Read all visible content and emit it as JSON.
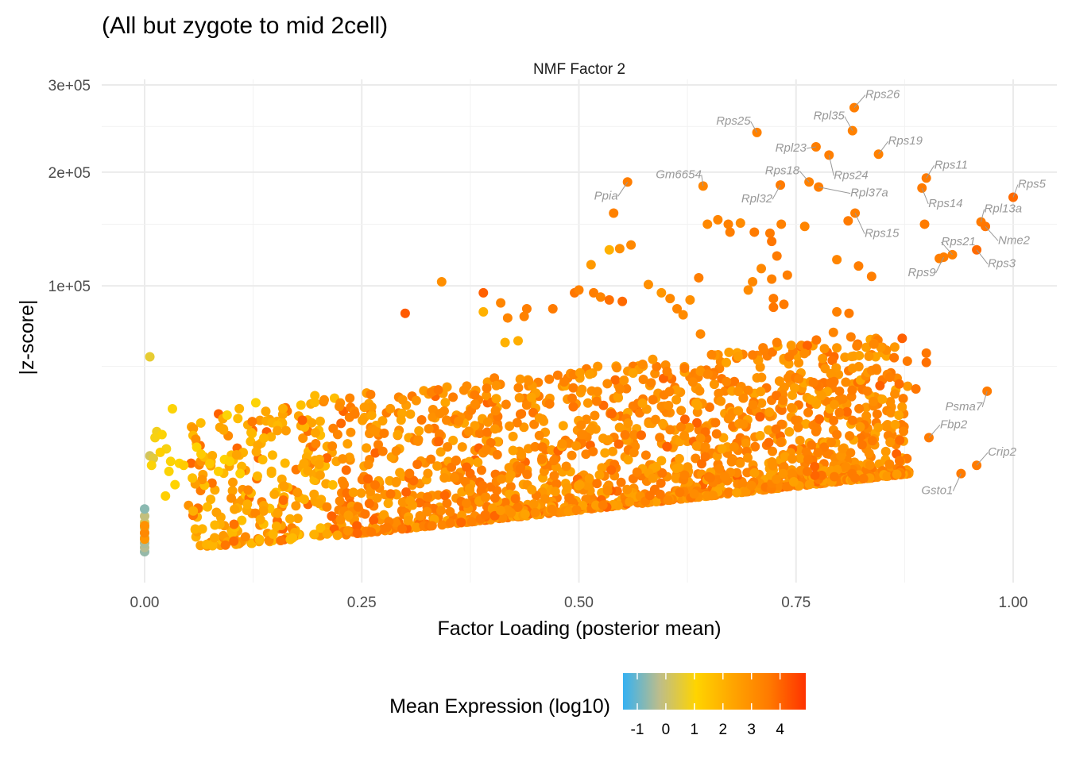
{
  "chart_data": {
    "type": "scatter",
    "title": "(All but zygote to mid 2cell)",
    "facet_label": "NMF Factor 2",
    "xlabel": "Factor Loading (posterior mean)",
    "ylabel": "|z-score|",
    "xlim": [
      -0.035,
      1.055
    ],
    "ylim": [
      0,
      303000
    ],
    "y_scale": "sqrt",
    "x_ticks": [
      0.0,
      0.25,
      0.5,
      0.75,
      1.0
    ],
    "x_tick_labels": [
      "0.00",
      "0.25",
      "0.50",
      "0.75",
      "1.00"
    ],
    "y_ticks": [
      100000,
      200000,
      300000
    ],
    "y_tick_labels": [
      "1e+05",
      "2e+05",
      "3e+05"
    ],
    "y_minor_ticks": [
      50000,
      150000,
      250000
    ],
    "grid": true,
    "legend": {
      "title": "Mean Expression (log10)",
      "position": "bottom",
      "range": [
        -1.5,
        4.9
      ],
      "ticks": [
        -1,
        0,
        1,
        2,
        3,
        4
      ],
      "tick_labels": [
        "-1",
        "0",
        "1",
        "2",
        "3",
        "4"
      ],
      "colors": [
        "#35B1F2",
        "#BDBD8A",
        "#FFD400",
        "#FFA500",
        "#FF7A00",
        "#FF3300"
      ]
    },
    "labeled_points": [
      {
        "label": "Rps26",
        "x": 0.817,
        "y": 272000,
        "c": 3.5
      },
      {
        "label": "Rpl35",
        "x": 0.815,
        "y": 245000,
        "c": 3.4
      },
      {
        "label": "Rps25",
        "x": 0.705,
        "y": 243000,
        "c": 3.4
      },
      {
        "label": "Rpl23",
        "x": 0.773,
        "y": 227000,
        "c": 3.5
      },
      {
        "label": "Rps19",
        "x": 0.845,
        "y": 219000,
        "c": 3.4
      },
      {
        "label": "Rps24",
        "x": 0.788,
        "y": 218000,
        "c": 3.5
      },
      {
        "label": "Rps11",
        "x": 0.9,
        "y": 194000,
        "c": 3.6
      },
      {
        "label": "Ppia",
        "x": 0.556,
        "y": 190000,
        "c": 3.5
      },
      {
        "label": "Gm6654",
        "x": 0.643,
        "y": 186000,
        "c": 3.3
      },
      {
        "label": "Rps18",
        "x": 0.765,
        "y": 190000,
        "c": 3.4
      },
      {
        "label": "Rpl32",
        "x": 0.732,
        "y": 187000,
        "c": 3.6
      },
      {
        "label": "Rpl37a",
        "x": 0.776,
        "y": 185000,
        "c": 3.5
      },
      {
        "label": "Rps14",
        "x": 0.895,
        "y": 184000,
        "c": 3.6
      },
      {
        "label": "Rps5",
        "x": 1.0,
        "y": 175000,
        "c": 3.9
      },
      {
        "label": "Rps15",
        "x": 0.818,
        "y": 160000,
        "c": 3.5
      },
      {
        "label": "Rpl13a",
        "x": 0.963,
        "y": 152000,
        "c": 3.6
      },
      {
        "label": "Nme2",
        "x": 0.968,
        "y": 148000,
        "c": 3.7
      },
      {
        "label": "Rps21",
        "x": 0.93,
        "y": 124000,
        "c": 3.4
      },
      {
        "label": "Rps9",
        "x": 0.92,
        "y": 122000,
        "c": 3.5
      },
      {
        "label": "Rps3",
        "x": 0.958,
        "y": 128000,
        "c": 3.9
      },
      {
        "label": "Psma7",
        "x": 0.97,
        "y": 38000,
        "c": 3.6
      },
      {
        "label": "Fbp2",
        "x": 0.903,
        "y": 20000,
        "c": 3.6
      },
      {
        "label": "Crip2",
        "x": 0.958,
        "y": 12000,
        "c": 3.6
      },
      {
        "label": "Gsto1",
        "x": 0.94,
        "y": 10000,
        "c": 3.6
      }
    ],
    "points": [
      {
        "x": 0.0,
        "y": 100,
        "c": -0.6
      },
      {
        "x": 0.0,
        "y": 220,
        "c": -0.3
      },
      {
        "x": 0.0,
        "y": 400,
        "c": -0.4
      },
      {
        "x": 0.0,
        "y": 700,
        "c": 0.0
      },
      {
        "x": 0.0,
        "y": 1000,
        "c": 0.4
      },
      {
        "x": 0.0,
        "y": 1400,
        "c": 0.2
      },
      {
        "x": 0.0,
        "y": 1900,
        "c": 0.3
      },
      {
        "x": 0.0,
        "y": 2600,
        "c": -0.1
      },
      {
        "x": 0.0,
        "y": 3500,
        "c": -0.7
      },
      {
        "x": 0.0,
        "y": 600,
        "c": 2.8
      },
      {
        "x": 0.0,
        "y": 1000,
        "c": 3.2
      },
      {
        "x": 0.0,
        "y": 1600,
        "c": 2.9
      },
      {
        "x": 0.006,
        "y": 14500,
        "c": 0.2
      },
      {
        "x": 0.01,
        "y": 13800,
        "c": 0.5
      },
      {
        "x": 0.014,
        "y": 22000,
        "c": 0.8
      },
      {
        "x": 0.012,
        "y": 20000,
        "c": 0.9
      },
      {
        "x": 0.02,
        "y": 21000,
        "c": 1.0
      },
      {
        "x": 0.025,
        "y": 16500,
        "c": 0.9
      },
      {
        "x": 0.03,
        "y": 13000,
        "c": 1.0
      },
      {
        "x": 0.04,
        "y": 12500,
        "c": 1.1
      },
      {
        "x": 0.018,
        "y": 15500,
        "c": 1.2
      },
      {
        "x": 0.028,
        "y": 10500,
        "c": 1.0
      },
      {
        "x": 0.035,
        "y": 7600,
        "c": 1.1
      },
      {
        "x": 0.024,
        "y": 5500,
        "c": 1.2
      },
      {
        "x": 0.008,
        "y": 12000,
        "c": 1.0
      },
      {
        "x": 0.006,
        "y": 55000,
        "c": 0.6
      },
      {
        "x": 0.032,
        "y": 30500,
        "c": 1.0
      },
      {
        "x": 0.095,
        "y": 28000,
        "c": 1.0
      },
      {
        "x": 0.128,
        "y": 33000,
        "c": 1.0
      },
      {
        "x": 0.18,
        "y": 32000,
        "c": 1.6
      },
      {
        "x": 0.196,
        "y": 36000,
        "c": 1.8
      },
      {
        "x": 0.092,
        "y": 13500,
        "c": 1.1
      },
      {
        "x": 0.098,
        "y": 13000,
        "c": 1.2
      },
      {
        "x": 0.06,
        "y": 17000,
        "c": 1.1
      },
      {
        "x": 0.045,
        "y": 12000,
        "c": 1.3
      },
      {
        "x": 0.075,
        "y": 12400,
        "c": 1.4
      },
      {
        "x": 0.055,
        "y": 9000,
        "c": 1.6
      },
      {
        "x": 0.065,
        "y": 15000,
        "c": 1.3
      },
      {
        "x": 0.085,
        "y": 10500,
        "c": 1.2
      },
      {
        "x": 0.11,
        "y": 10000,
        "c": 1.2
      },
      {
        "x": 0.54,
        "y": 160000,
        "c": 3.4
      },
      {
        "x": 0.535,
        "y": 128000,
        "c": 2.0
      },
      {
        "x": 0.547,
        "y": 129000,
        "c": 3.0
      },
      {
        "x": 0.56,
        "y": 132000,
        "c": 3.2
      },
      {
        "x": 0.514,
        "y": 116000,
        "c": 2.7
      },
      {
        "x": 0.342,
        "y": 103000,
        "c": 3.0
      },
      {
        "x": 0.39,
        "y": 95000,
        "c": 4.1
      },
      {
        "x": 0.3,
        "y": 81000,
        "c": 4.2
      },
      {
        "x": 0.39,
        "y": 82000,
        "c": 2.0
      },
      {
        "x": 0.41,
        "y": 88000,
        "c": 3.3
      },
      {
        "x": 0.415,
        "y": 63000,
        "c": 2.0
      },
      {
        "x": 0.43,
        "y": 64000,
        "c": 2.1
      },
      {
        "x": 0.44,
        "y": 84000,
        "c": 3.5
      },
      {
        "x": 0.418,
        "y": 78000,
        "c": 3.3
      },
      {
        "x": 0.437,
        "y": 79000,
        "c": 3.4
      },
      {
        "x": 0.47,
        "y": 84000,
        "c": 3.6
      },
      {
        "x": 0.495,
        "y": 95000,
        "c": 3.7
      },
      {
        "x": 0.5,
        "y": 97000,
        "c": 3.4
      },
      {
        "x": 0.517,
        "y": 95000,
        "c": 3.5
      },
      {
        "x": 0.525,
        "y": 92000,
        "c": 3.3
      },
      {
        "x": 0.535,
        "y": 90000,
        "c": 3.8
      },
      {
        "x": 0.55,
        "y": 89000,
        "c": 3.9
      },
      {
        "x": 0.58,
        "y": 101000,
        "c": 3.0
      },
      {
        "x": 0.595,
        "y": 95000,
        "c": 2.8
      },
      {
        "x": 0.605,
        "y": 91000,
        "c": 3.2
      },
      {
        "x": 0.628,
        "y": 90000,
        "c": 3.0
      },
      {
        "x": 0.638,
        "y": 106000,
        "c": 3.5
      },
      {
        "x": 0.62,
        "y": 80000,
        "c": 3.1
      },
      {
        "x": 0.613,
        "y": 84000,
        "c": 3.3
      },
      {
        "x": 0.64,
        "y": 68000,
        "c": 3.2
      },
      {
        "x": 0.66,
        "y": 154000,
        "c": 3.3
      },
      {
        "x": 0.672,
        "y": 150000,
        "c": 3.4
      },
      {
        "x": 0.686,
        "y": 151000,
        "c": 3.1
      },
      {
        "x": 0.674,
        "y": 143000,
        "c": 3.5
      },
      {
        "x": 0.648,
        "y": 150000,
        "c": 3.2
      },
      {
        "x": 0.702,
        "y": 143000,
        "c": 3.6
      },
      {
        "x": 0.72,
        "y": 142000,
        "c": 3.6
      },
      {
        "x": 0.722,
        "y": 135000,
        "c": 3.7
      },
      {
        "x": 0.733,
        "y": 150000,
        "c": 3.4
      },
      {
        "x": 0.71,
        "y": 113000,
        "c": 3.2
      },
      {
        "x": 0.728,
        "y": 123000,
        "c": 3.6
      },
      {
        "x": 0.74,
        "y": 108000,
        "c": 3.5
      },
      {
        "x": 0.722,
        "y": 105000,
        "c": 3.4
      },
      {
        "x": 0.7,
        "y": 103000,
        "c": 3.2
      },
      {
        "x": 0.695,
        "y": 97000,
        "c": 3.1
      },
      {
        "x": 0.724,
        "y": 91000,
        "c": 3.6
      },
      {
        "x": 0.736,
        "y": 87000,
        "c": 3.6
      },
      {
        "x": 0.724,
        "y": 85000,
        "c": 3.7
      },
      {
        "x": 0.76,
        "y": 148000,
        "c": 3.3
      },
      {
        "x": 0.797,
        "y": 120000,
        "c": 3.3
      },
      {
        "x": 0.81,
        "y": 153000,
        "c": 3.6
      },
      {
        "x": 0.822,
        "y": 115000,
        "c": 3.5
      },
      {
        "x": 0.837,
        "y": 107000,
        "c": 3.5
      },
      {
        "x": 0.797,
        "y": 82000,
        "c": 3.4
      },
      {
        "x": 0.811,
        "y": 81000,
        "c": 3.6
      },
      {
        "x": 0.793,
        "y": 69000,
        "c": 3.3
      },
      {
        "x": 0.82,
        "y": 61000,
        "c": 3.4
      },
      {
        "x": 0.888,
        "y": 39000,
        "c": 3.7
      },
      {
        "x": 0.9,
        "y": 57000,
        "c": 3.7
      },
      {
        "x": 0.9,
        "y": 52000,
        "c": 3.8
      },
      {
        "x": 0.898,
        "y": 150000,
        "c": 3.6
      },
      {
        "x": 0.915,
        "y": 121000,
        "c": 3.5
      },
      {
        "x": 0.77,
        "y": 42000,
        "c": 3.5
      },
      {
        "x": 0.79,
        "y": 42000,
        "c": 3.6
      },
      {
        "x": 0.8,
        "y": 38000,
        "c": 3.5
      },
      {
        "x": 0.832,
        "y": 38000,
        "c": 3.4
      },
      {
        "x": 0.838,
        "y": 19000,
        "c": 3.6
      },
      {
        "x": 0.773,
        "y": 22000,
        "c": 3.4
      },
      {
        "x": 0.797,
        "y": 21000,
        "c": 3.5
      },
      {
        "x": 0.764,
        "y": 13500,
        "c": 3.5
      },
      {
        "x": 0.763,
        "y": 10500,
        "c": 3.6
      },
      {
        "x": 0.818,
        "y": 9000,
        "c": 3.6
      },
      {
        "x": 0.8,
        "y": 29000,
        "c": 3.5
      },
      {
        "x": 0.764,
        "y": 29000,
        "c": 3.4
      },
      {
        "x": 0.815,
        "y": 26000,
        "c": 3.6
      },
      {
        "x": 0.735,
        "y": 34000,
        "c": 3.3
      },
      {
        "x": 0.742,
        "y": 55000,
        "c": 3.5
      },
      {
        "x": 0.728,
        "y": 63000,
        "c": 3.4
      },
      {
        "x": 0.712,
        "y": 60000,
        "c": 3.4
      },
      {
        "x": 0.7,
        "y": 56000,
        "c": 3.5
      }
    ]
  }
}
